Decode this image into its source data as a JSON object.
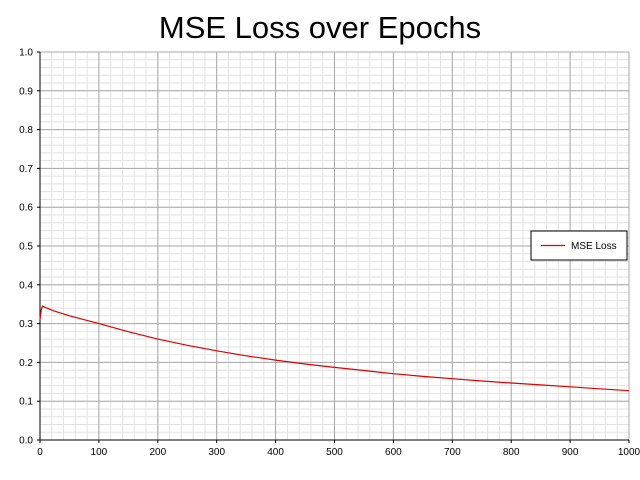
{
  "chart_data": {
    "type": "line",
    "title": "MSE Loss over Epochs",
    "xlabel": "",
    "ylabel": "",
    "xlim": [
      0,
      1000
    ],
    "ylim": [
      0.0,
      1.0
    ],
    "x_ticks": [
      0,
      100,
      200,
      300,
      400,
      500,
      600,
      700,
      800,
      900,
      1000
    ],
    "y_ticks": [
      "0.0",
      "0.1",
      "0.2",
      "0.3",
      "0.4",
      "0.5",
      "0.6",
      "0.7",
      "0.8",
      "0.9",
      "1.0"
    ],
    "grid": true,
    "legend_position": "right",
    "series": [
      {
        "name": "MSE Loss",
        "color": "#e00000",
        "x": [
          0,
          2,
          4,
          10,
          25,
          50,
          75,
          100,
          150,
          200,
          250,
          300,
          350,
          400,
          450,
          500,
          550,
          600,
          650,
          700,
          750,
          800,
          850,
          900,
          950,
          1000
        ],
        "y": [
          0.31,
          0.335,
          0.345,
          0.341,
          0.332,
          0.32,
          0.31,
          0.3,
          0.279,
          0.26,
          0.244,
          0.23,
          0.217,
          0.206,
          0.196,
          0.187,
          0.179,
          0.171,
          0.164,
          0.158,
          0.152,
          0.147,
          0.142,
          0.137,
          0.132,
          0.127
        ]
      }
    ]
  }
}
